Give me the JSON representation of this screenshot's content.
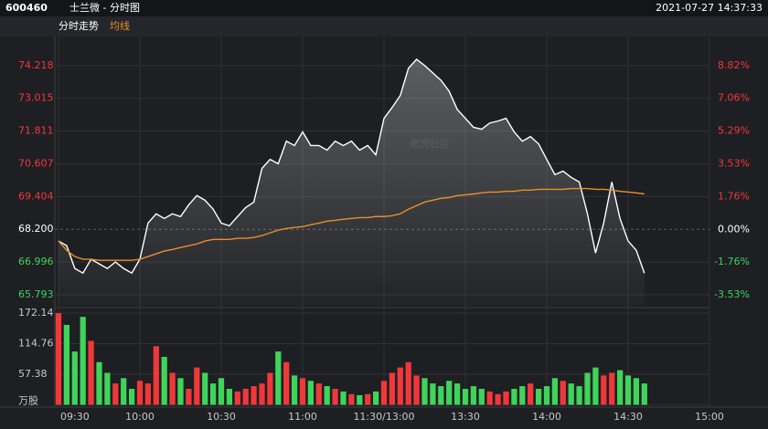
{
  "header": {
    "code": "600460",
    "name": "士兰微 - 分时图",
    "datetime": "2021-07-27 14:37:33"
  },
  "chart_data": [
    {
      "type": "line",
      "watermark": "老虎社区",
      "xlim": [
        0,
        80
      ],
      "ylim": [
        65.39,
        75.12
      ],
      "yticks": [
        74.218,
        73.015,
        71.811,
        70.607,
        69.404,
        {
          "value": 68.2,
          "label": "68.200"
        },
        66.996,
        65.793
      ],
      "y2lim": [
        -4.12,
        10.147
      ],
      "y2ticks": [
        {
          "value": 8.82,
          "label": "8.82%"
        },
        {
          "value": 7.06,
          "label": "7.06%"
        },
        {
          "value": 5.29,
          "label": "5.29%"
        },
        {
          "value": 3.53,
          "label": "3.53%"
        },
        {
          "value": 1.76,
          "label": "1.76%"
        },
        {
          "value": 0,
          "label": "0.00%"
        },
        {
          "value": -1.76,
          "label": "-1.76%"
        },
        {
          "value": -3.53,
          "label": "-3.53%"
        }
      ],
      "up_color": "#f0383a",
      "down_color": "#3fd45a",
      "flat_color": "#ffffff",
      "series": [
        {
          "name": "分时走势",
          "color": "#ffffff",
          "values": [
            67.77,
            67.6,
            66.76,
            66.59,
            67.1,
            66.93,
            66.76,
            67.0,
            66.76,
            66.59,
            67.1,
            68.43,
            68.77,
            68.6,
            68.77,
            68.67,
            69.1,
            69.44,
            69.27,
            68.94,
            68.43,
            68.33,
            68.67,
            69.0,
            69.2,
            70.44,
            70.77,
            70.61,
            71.44,
            71.28,
            71.78,
            71.28,
            71.28,
            71.11,
            71.44,
            71.28,
            71.44,
            71.11,
            71.28,
            70.94,
            72.28,
            72.68,
            73.12,
            74.12,
            74.45,
            74.22,
            73.95,
            73.68,
            73.28,
            72.61,
            72.28,
            71.95,
            71.88,
            72.11,
            72.18,
            72.28,
            71.78,
            71.44,
            71.61,
            71.34,
            70.77,
            70.21,
            70.34,
            70.11,
            69.94,
            68.77,
            67.33,
            68.43,
            69.94,
            68.6,
            67.77,
            67.43,
            66.59
          ]
        },
        {
          "name": "均线",
          "color": "#e8902a",
          "values": [
            67.77,
            67.43,
            67.2,
            67.1,
            67.1,
            67.06,
            67.06,
            67.06,
            67.06,
            67.06,
            67.1,
            67.2,
            67.3,
            67.4,
            67.46,
            67.53,
            67.6,
            67.66,
            67.77,
            67.83,
            67.83,
            67.83,
            67.87,
            67.87,
            67.9,
            67.97,
            68.07,
            68.17,
            68.23,
            68.27,
            68.3,
            68.37,
            68.43,
            68.5,
            68.53,
            68.57,
            68.6,
            68.63,
            68.63,
            68.67,
            68.67,
            68.7,
            68.77,
            68.94,
            69.07,
            69.2,
            69.27,
            69.34,
            69.37,
            69.44,
            69.47,
            69.5,
            69.54,
            69.57,
            69.57,
            69.6,
            69.6,
            69.64,
            69.64,
            69.67,
            69.67,
            69.67,
            69.67,
            69.7,
            69.7,
            69.7,
            69.67,
            69.67,
            69.64,
            69.6,
            69.57,
            69.54,
            69.5
          ]
        }
      ]
    },
    {
      "type": "bar",
      "xlim": [
        0,
        80
      ],
      "xticks": [
        {
          "value": 0,
          "label": "09:30"
        },
        {
          "value": 10,
          "label": "10:00"
        },
        {
          "value": 20,
          "label": "10:30"
        },
        {
          "value": 30,
          "label": "11:00"
        },
        {
          "value": 40,
          "label": "11:30/13:00"
        },
        {
          "value": 50,
          "label": "13:30"
        },
        {
          "value": 60,
          "label": "14:00"
        },
        {
          "value": 70,
          "label": "14:30"
        },
        {
          "value": 80,
          "label": "15:00"
        }
      ],
      "ylim": [
        0,
        180.7
      ],
      "yticks": [
        172.14,
        114.76,
        57.38,
        {
          "value": 0,
          "label": "万股"
        }
      ],
      "values": [
        172,
        150,
        100,
        165,
        120,
        80,
        60,
        40,
        50,
        30,
        45,
        40,
        110,
        90,
        60,
        50,
        30,
        70,
        60,
        40,
        50,
        30,
        25,
        30,
        35,
        40,
        60,
        100,
        80,
        55,
        50,
        45,
        40,
        35,
        30,
        25,
        20,
        18,
        20,
        25,
        45,
        60,
        70,
        80,
        55,
        50,
        40,
        35,
        45,
        40,
        30,
        35,
        30,
        25,
        20,
        25,
        30,
        35,
        40,
        30,
        35,
        50,
        45,
        40,
        35,
        60,
        70,
        55,
        60,
        65,
        55,
        50,
        40
      ]
    }
  ]
}
